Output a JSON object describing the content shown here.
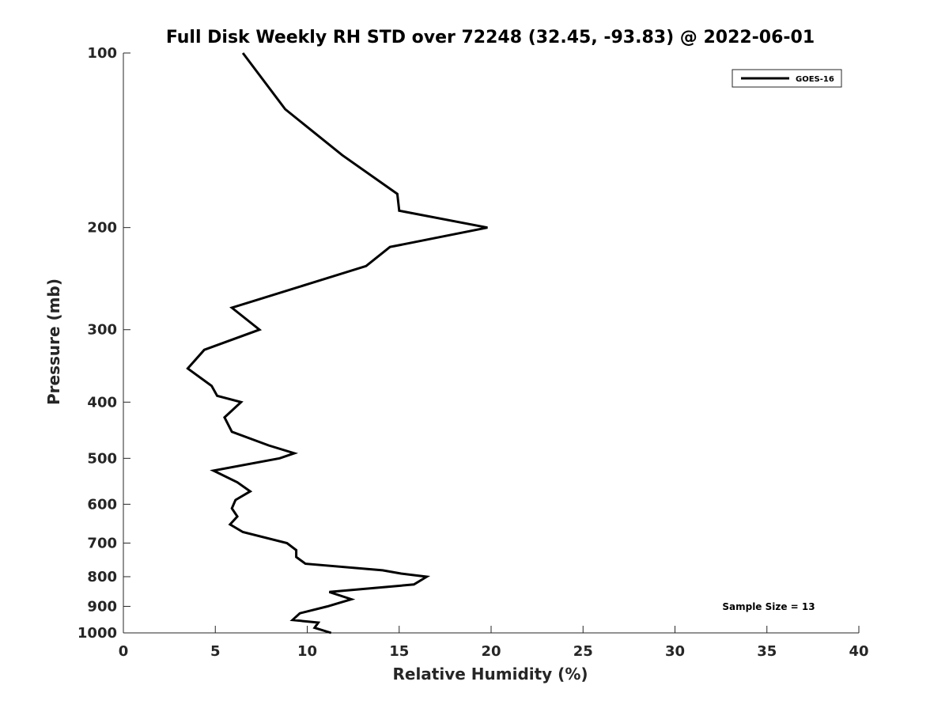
{
  "chart_data": {
    "type": "line",
    "title": "Full Disk Weekly RH STD over 72248 (32.45, -93.83) @ 2022-06-01",
    "xlabel": "Relative Humidity (%)",
    "ylabel": "Pressure (mb)",
    "xlim": [
      0,
      40
    ],
    "ylim": [
      100,
      1000
    ],
    "y_scale": "log",
    "y_reversed": true,
    "x_ticks": [
      0,
      5,
      10,
      15,
      20,
      25,
      30,
      35,
      40
    ],
    "y_ticks": [
      100,
      200,
      300,
      400,
      500,
      600,
      700,
      800,
      900,
      1000
    ],
    "grid": false,
    "legend_position": "top-right",
    "annotation": "Sample Size = 13",
    "series": [
      {
        "name": "GOES-16",
        "color": "#000000",
        "points": [
          [
            6.5,
            100
          ],
          [
            8.8,
            125
          ],
          [
            11.9,
            150
          ],
          [
            14.9,
            175
          ],
          [
            15.0,
            187
          ],
          [
            19.8,
            200
          ],
          [
            14.5,
            216
          ],
          [
            13.2,
            233
          ],
          [
            10.1,
            250
          ],
          [
            5.9,
            275
          ],
          [
            7.4,
            300
          ],
          [
            4.4,
            325
          ],
          [
            3.5,
            350
          ],
          [
            4.8,
            375
          ],
          [
            5.1,
            390
          ],
          [
            6.4,
            400
          ],
          [
            5.5,
            425
          ],
          [
            5.9,
            450
          ],
          [
            7.9,
            475
          ],
          [
            9.3,
            490
          ],
          [
            8.5,
            500
          ],
          [
            4.9,
            525
          ],
          [
            6.2,
            550
          ],
          [
            6.9,
            570
          ],
          [
            6.1,
            590
          ],
          [
            5.9,
            610
          ],
          [
            6.2,
            630
          ],
          [
            5.8,
            650
          ],
          [
            6.5,
            670
          ],
          [
            8.9,
            700
          ],
          [
            9.4,
            720
          ],
          [
            9.4,
            740
          ],
          [
            9.9,
            760
          ],
          [
            14.1,
            780
          ],
          [
            15.1,
            790
          ],
          [
            16.5,
            800
          ],
          [
            15.8,
            825
          ],
          [
            11.2,
            850
          ],
          [
            12.4,
            875
          ],
          [
            11.1,
            900
          ],
          [
            9.6,
            925
          ],
          [
            9.2,
            950
          ],
          [
            10.6,
            960
          ],
          [
            10.4,
            980
          ],
          [
            11.3,
            1000
          ]
        ]
      }
    ]
  }
}
